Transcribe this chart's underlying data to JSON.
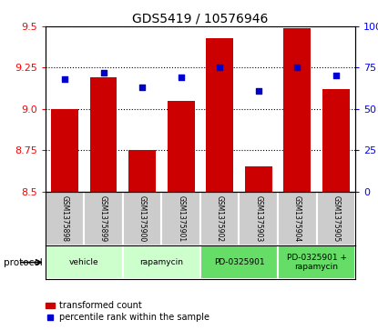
{
  "title": "GDS5419 / 10576946",
  "samples": [
    "GSM1375898",
    "GSM1375899",
    "GSM1375900",
    "GSM1375901",
    "GSM1375902",
    "GSM1375903",
    "GSM1375904",
    "GSM1375905"
  ],
  "transformed_counts": [
    9.0,
    9.19,
    8.75,
    9.05,
    9.43,
    8.65,
    9.49,
    9.12
  ],
  "percentile_ranks": [
    68,
    72,
    63,
    69,
    75,
    61,
    75,
    70
  ],
  "bar_color": "#cc0000",
  "dot_color": "#0000cc",
  "ylim_left": [
    8.5,
    9.5
  ],
  "ylim_right": [
    0,
    100
  ],
  "yticks_left": [
    8.5,
    8.75,
    9.0,
    9.25,
    9.5
  ],
  "yticks_right": [
    0,
    25,
    50,
    75,
    100
  ],
  "grid_lines": [
    8.75,
    9.0,
    9.25
  ],
  "protocol_label": "protocol",
  "legend_bar_label": "transformed count",
  "legend_dot_label": "percentile rank within the sample",
  "sample_box_color": "#cccccc",
  "protocol_groups": [
    {
      "label": "vehicle",
      "start": 0,
      "end": 1,
      "color": "#ccffcc"
    },
    {
      "label": "rapamycin",
      "start": 2,
      "end": 3,
      "color": "#ccffcc"
    },
    {
      "label": "PD-0325901",
      "start": 4,
      "end": 5,
      "color": "#66dd66"
    },
    {
      "label": "PD-0325901 +\nrapamycin",
      "start": 6,
      "end": 7,
      "color": "#66dd66"
    }
  ]
}
